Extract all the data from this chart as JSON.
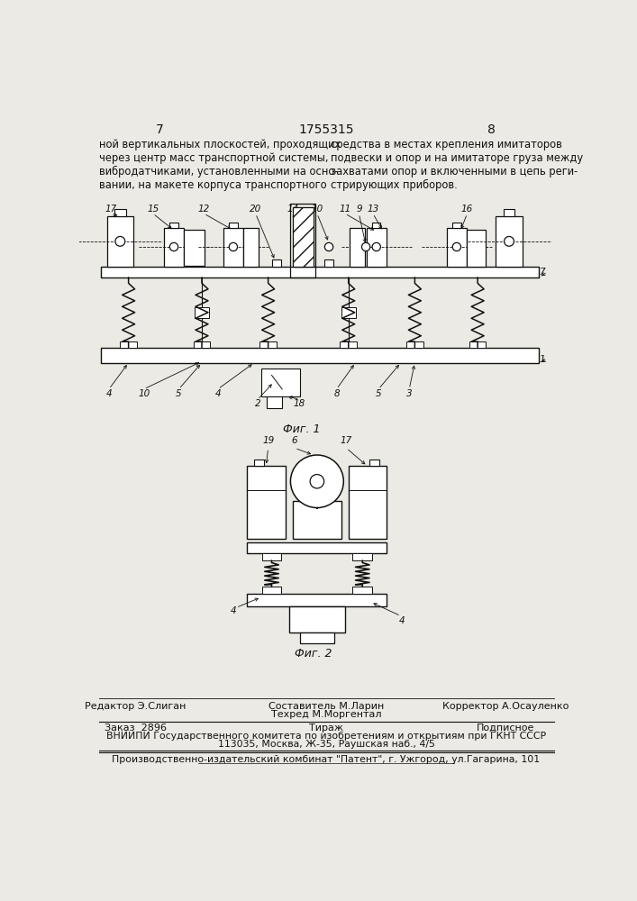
{
  "page_number_left": "7",
  "page_number_center": "1755315",
  "page_number_right": "8",
  "text_left_col": "ной вертикальных плоскостей, проходящих\nчерез центр масс транспортной системы,\nвибродатчиками, установленными на осно-\nвании, на макете корпуса транспортного",
  "text_right_col": "средства в местах крепления имитаторов\nподвески и опор и на имитаторе груза между\nзахватами опор и включенными в цепь реги-\nстрирующих приборов.",
  "fig1_caption": "Фиг. 1",
  "fig2_caption": "Фиг. 2",
  "footer_editor": "Редактор Э.Слиган",
  "footer_composer": "Составитель М.Ларин",
  "footer_tech": "Техред М.Моргентал",
  "footer_corrector": "Корректор А.Осауленко",
  "footer_order": "Заказ  2896",
  "footer_circulation": "Тираж",
  "footer_subscription": "Подписное",
  "footer_vniip": "ВНИИПИ Государственного комитета по изобретениям и открытиям при ГКНТ СССР",
  "footer_address": "113035, Москва, Ж-35, Раушская наб., 4/5",
  "footer_publisher": "Производственно-издательский комбинат \"Патент\", г. Ужгород, ул.Гагарина, 101",
  "bg_color": "#eceae4",
  "line_color": "#111111",
  "text_color": "#111111"
}
